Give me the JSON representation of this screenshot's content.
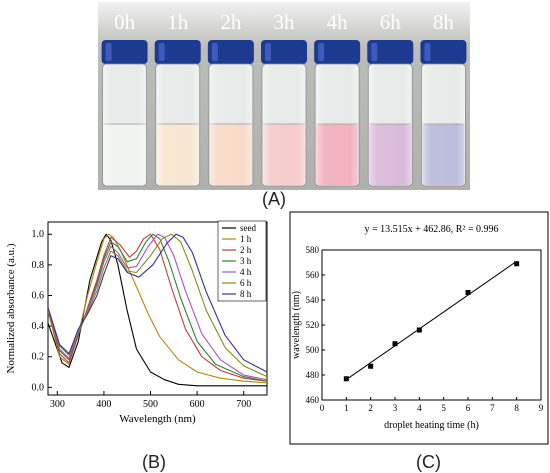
{
  "panels": {
    "a_label": "(A)",
    "b_label": "(B)",
    "c_label": "(C)"
  },
  "vials": {
    "labels": [
      "0h",
      "1h",
      "2h",
      "3h",
      "4h",
      "6h",
      "8h"
    ],
    "liquid_colors": [
      "#eef2ee",
      "#f6e4cc",
      "#f8d6c2",
      "#f5c6c6",
      "#f1a9b6",
      "#d6b2d6",
      "#b3b6d8"
    ],
    "cap_color": "#1c3a8f",
    "background_color": "#bcbcb8"
  },
  "chart_data": [
    {
      "type": "line",
      "ylabel": "Normalized absorbance (a.u.)",
      "xlabel": "Wavelength (nm)",
      "xlim": [
        280,
        750
      ],
      "ylim": [
        -0.05,
        1.08
      ],
      "xticks": [
        300,
        400,
        500,
        600,
        700
      ],
      "yticks": [
        0.0,
        0.2,
        0.4,
        0.6,
        0.8,
        1.0
      ],
      "ytick_labels": [
        "0.0",
        "0.2",
        "0.4",
        "0.6",
        "0.8",
        "1.0"
      ],
      "legend_position": "top-right",
      "series": [
        {
          "name": "seed",
          "color": "#000000",
          "x": [
            280,
            310,
            325,
            345,
            370,
            395,
            405,
            415,
            430,
            450,
            470,
            500,
            530,
            560,
            600,
            650,
            700,
            750
          ],
          "y": [
            0.42,
            0.16,
            0.13,
            0.3,
            0.7,
            0.95,
            1.0,
            0.96,
            0.8,
            0.5,
            0.25,
            0.1,
            0.05,
            0.02,
            0.01,
            0.01,
            0.01,
            0.01
          ]
        },
        {
          "name": "1 h",
          "color": "#b8860b",
          "x": [
            280,
            305,
            325,
            345,
            365,
            385,
            400,
            410,
            420,
            435,
            455,
            475,
            495,
            520,
            560,
            600,
            650,
            700,
            750
          ],
          "y": [
            0.5,
            0.2,
            0.15,
            0.35,
            0.6,
            0.82,
            0.97,
            1.0,
            0.98,
            0.9,
            0.76,
            0.62,
            0.48,
            0.33,
            0.18,
            0.1,
            0.06,
            0.04,
            0.03
          ]
        },
        {
          "name": "2 h",
          "color": "#c04040",
          "x": [
            280,
            305,
            325,
            345,
            365,
            385,
            400,
            415,
            435,
            455,
            470,
            485,
            500,
            520,
            545,
            575,
            610,
            650,
            700,
            750
          ],
          "y": [
            0.52,
            0.22,
            0.16,
            0.34,
            0.52,
            0.7,
            0.86,
            0.98,
            0.93,
            0.85,
            0.89,
            0.97,
            1.0,
            0.9,
            0.65,
            0.38,
            0.2,
            0.11,
            0.06,
            0.04
          ]
        },
        {
          "name": "3 h",
          "color": "#2a8a2a",
          "x": [
            280,
            305,
            325,
            345,
            365,
            385,
            400,
            415,
            430,
            450,
            470,
            490,
            505,
            520,
            540,
            565,
            600,
            640,
            700,
            750
          ],
          "y": [
            0.52,
            0.24,
            0.18,
            0.35,
            0.5,
            0.68,
            0.84,
            0.95,
            0.92,
            0.82,
            0.84,
            0.95,
            1.0,
            0.97,
            0.82,
            0.58,
            0.3,
            0.15,
            0.07,
            0.04
          ]
        },
        {
          "name": "4 h",
          "color": "#b050c0",
          "x": [
            280,
            305,
            325,
            345,
            365,
            385,
            400,
            415,
            430,
            450,
            470,
            495,
            515,
            530,
            550,
            575,
            610,
            650,
            700,
            750
          ],
          "y": [
            0.52,
            0.25,
            0.19,
            0.36,
            0.5,
            0.66,
            0.82,
            0.92,
            0.88,
            0.78,
            0.79,
            0.92,
            1.0,
            0.98,
            0.86,
            0.63,
            0.35,
            0.18,
            0.08,
            0.05
          ]
        },
        {
          "name": "6 h",
          "color": "#8a8a10",
          "x": [
            280,
            305,
            325,
            345,
            365,
            385,
            400,
            415,
            430,
            450,
            470,
            500,
            525,
            545,
            565,
            590,
            620,
            660,
            700,
            750
          ],
          "y": [
            0.52,
            0.27,
            0.21,
            0.37,
            0.49,
            0.63,
            0.78,
            0.89,
            0.86,
            0.76,
            0.75,
            0.86,
            0.97,
            1.0,
            0.95,
            0.76,
            0.5,
            0.26,
            0.14,
            0.07
          ]
        },
        {
          "name": "8 h",
          "color": "#3030a0",
          "x": [
            280,
            305,
            325,
            345,
            365,
            385,
            400,
            415,
            430,
            450,
            475,
            505,
            535,
            555,
            570,
            590,
            620,
            660,
            700,
            750
          ],
          "y": [
            0.52,
            0.28,
            0.22,
            0.38,
            0.48,
            0.6,
            0.74,
            0.86,
            0.84,
            0.75,
            0.72,
            0.8,
            0.94,
            1.0,
            0.98,
            0.88,
            0.62,
            0.34,
            0.18,
            0.1
          ]
        }
      ]
    },
    {
      "type": "scatter",
      "title": "y = 13.515x + 462.86, R² = 0.996",
      "xlabel": "droplet heating time (h)",
      "ylabel": "wavelength (nm)",
      "xlim": [
        0,
        9
      ],
      "ylim": [
        460,
        580
      ],
      "xticks": [
        0,
        1,
        2,
        3,
        4,
        5,
        6,
        7,
        8,
        9
      ],
      "yticks": [
        460,
        480,
        500,
        520,
        540,
        560,
        580
      ],
      "points": {
        "x": [
          1,
          2,
          3,
          4,
          6,
          8
        ],
        "y": [
          477,
          487,
          505,
          516,
          546,
          569
        ]
      },
      "fit": {
        "slope": 13.515,
        "intercept": 462.86,
        "x_range": [
          1,
          8
        ]
      }
    }
  ]
}
